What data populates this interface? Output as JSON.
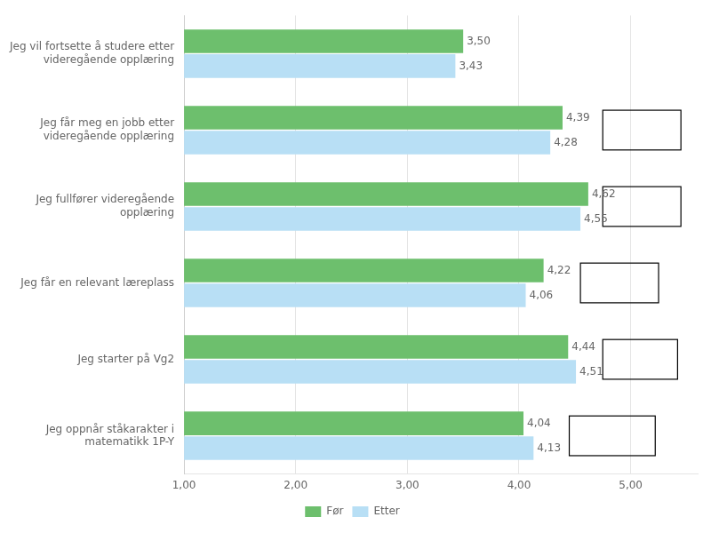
{
  "chart_data": {
    "type": "bar",
    "orientation": "horizontal",
    "categories": [
      "Jeg vil fortsette å studere etter\nvideregående opplæring",
      "Jeg får meg en jobb etter\nvideregående opplæring",
      "Jeg fullfører videregående\nopplæring",
      "Jeg får en relevant læreplass",
      "Jeg starter på Vg2",
      "Jeg oppnår ståkarakter i\nmatematikk 1P-Y"
    ],
    "series": [
      {
        "name": "Før",
        "color": "#6dbf6d",
        "values": [
          3.5,
          4.39,
          4.62,
          4.22,
          4.44,
          4.04
        ],
        "value_labels": [
          "3,50",
          "4,39",
          "4,62",
          "4,22",
          "4,44",
          "4,04"
        ]
      },
      {
        "name": "Etter",
        "color": "#b8dff5",
        "values": [
          3.43,
          4.28,
          4.55,
          4.06,
          4.51,
          4.13
        ],
        "value_labels": [
          "3,43",
          "4,28",
          "4,55",
          "4,06",
          "4,51",
          "4,13"
        ]
      }
    ],
    "ci_boxes": [
      null,
      [
        4.75,
        5.45
      ],
      [
        4.75,
        5.45
      ],
      [
        4.55,
        5.25
      ],
      [
        4.75,
        5.42
      ],
      [
        4.45,
        5.22
      ]
    ],
    "xlim": [
      1.0,
      5.6
    ],
    "xticks": [
      {
        "value": 1.0,
        "label": "1,00"
      },
      {
        "value": 2.0,
        "label": "2,00"
      },
      {
        "value": 3.0,
        "label": "3,00"
      },
      {
        "value": 4.0,
        "label": "4,00"
      },
      {
        "value": 5.0,
        "label": "5,00"
      }
    ],
    "grid": true,
    "legend": "bottom",
    "data_labels": true
  }
}
